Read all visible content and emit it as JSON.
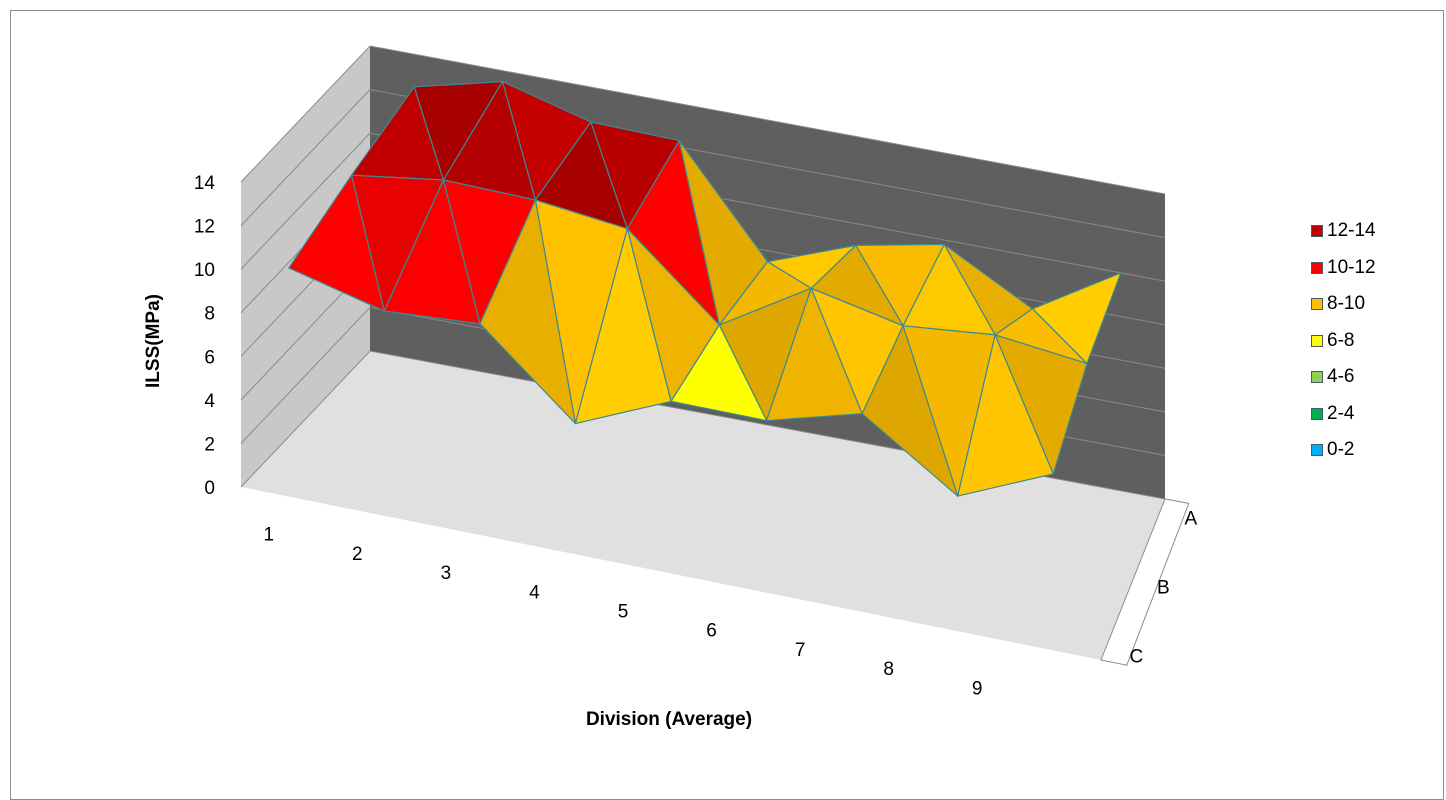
{
  "chart_data": {
    "type": "surface",
    "title": "",
    "xlabel": "Division (Average)",
    "ylabel": "ILSS(MPa)",
    "zlim": [
      0,
      14
    ],
    "z_ticks": [
      "0",
      "2",
      "4",
      "6",
      "8",
      "10",
      "12",
      "14"
    ],
    "x_categories": [
      "1",
      "2",
      "3",
      "4",
      "5",
      "6",
      "7",
      "8",
      "9"
    ],
    "depth_categories": [
      "A",
      "B",
      "C"
    ],
    "series": [
      {
        "name": "A",
        "values": [
          12.5,
          13.5,
          12.4,
          12.3,
          7.5,
          9.0,
          9.8,
          7.6,
          10.0
        ]
      },
      {
        "name": "B",
        "values": [
          11.6,
          12.2,
          12.1,
          11.6,
          8.0,
          10.5,
          9.6,
          10.0,
          9.5
        ]
      },
      {
        "name": "C",
        "values": [
          10.5,
          9.4,
          9.7,
          6.0,
          7.9,
          7.9,
          9.1,
          6.2,
          8.1
        ]
      }
    ],
    "legend": {
      "position": "right",
      "items": [
        {
          "label": "12-14",
          "color": "#c00000"
        },
        {
          "label": "10-12",
          "color": "#ff0000"
        },
        {
          "label": "8-10",
          "color": "#ffc000"
        },
        {
          "label": "6-8",
          "color": "#ffff00"
        },
        {
          "label": "4-6",
          "color": "#92d050"
        },
        {
          "label": "2-4",
          "color": "#00b050"
        },
        {
          "label": "0-2",
          "color": "#00b0f0"
        }
      ]
    },
    "colors": {
      "back_wall": "#5f5f5f",
      "side_wall": "#c8c8c8",
      "floor": "#e0e0e0",
      "gridline": "#8a8a8a",
      "edge": "#3a8a94"
    }
  }
}
